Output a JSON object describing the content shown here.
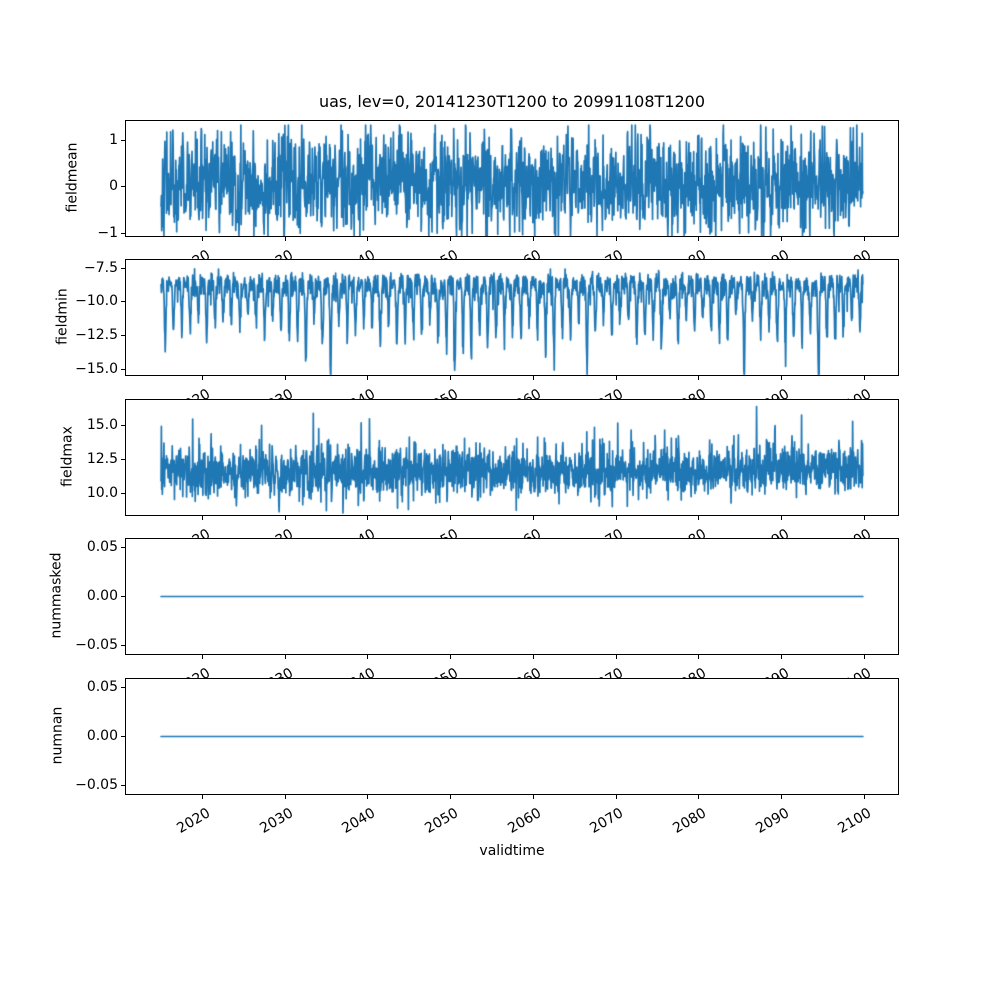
{
  "title": "uas, lev=0, 20141230T1200 to 20991108T1200",
  "line_color": "#1f77b4",
  "background_color": "#ffffff",
  "text_color": "#000000",
  "spine_color": "#000000",
  "x_axis": {
    "label": "validtime",
    "tick_values": [
      2020,
      2030,
      2040,
      2050,
      2060,
      2070,
      2080,
      2090,
      2100
    ],
    "tick_labels": [
      "2020",
      "2030",
      "2040",
      "2050",
      "2060",
      "2070",
      "2080",
      "2090",
      "2100"
    ],
    "xlim": [
      2010.75,
      2104.1
    ],
    "tick_label_rotation_deg": 30
  },
  "chart_data": [
    {
      "type": "line",
      "panel": "fieldmean",
      "ylabel": "fieldmean",
      "ytick_values": [
        1,
        0,
        -1
      ],
      "ytick_labels": [
        "1",
        "0",
        "−1"
      ],
      "ylim": [
        -1.06,
        1.42
      ],
      "x_start": 2014.99,
      "x_end": 2099.85,
      "summary": {
        "pattern": "dense high-frequency noise around zero",
        "mean": 0.08,
        "min": -1.05,
        "max": 1.33
      },
      "gen": {
        "kind": "ar-noise",
        "seed": 42,
        "n": 2200,
        "ar": 0.25,
        "sigma": 0.52,
        "offset": 0.08,
        "clip": [
          -1.05,
          1.33
        ]
      }
    },
    {
      "type": "line",
      "panel": "fieldmin",
      "ylabel": "fieldmin",
      "ytick_values": [
        -7.5,
        -10.0,
        -12.5,
        -15.0
      ],
      "ytick_labels": [
        "−7.5",
        "−10.0",
        "−12.5",
        "−15.0"
      ],
      "ylim": [
        -15.44,
        -6.88
      ],
      "x_start": 2014.99,
      "x_end": 2099.85,
      "summary": {
        "pattern": "noisy base near -8 with annual downward spikes to -10.5..-13, rare spikes near -15",
        "base": -8.1,
        "typical_dip": -12.0,
        "deepest": -15.3,
        "deepest_year": 2094
      },
      "gen": {
        "kind": "annual-dips",
        "seed": 7,
        "n": 2200,
        "base": -8.05,
        "base_noise": 0.55,
        "dip_sigma_years": 0.085,
        "dip_depth_min": 2.2,
        "dip_depth_rand": 2.6,
        "deep_dips": [
          [
            2035,
            6.4
          ],
          [
            2050,
            6.6
          ],
          [
            2066,
            6.1
          ],
          [
            2094,
            7.35
          ]
        ],
        "clip": [
          -15.38,
          -7.2
        ]
      }
    },
    {
      "type": "line",
      "panel": "fieldmax",
      "ylabel": "fieldmax",
      "ytick_values": [
        15.0,
        12.5,
        10.0
      ],
      "ytick_labels": [
        "15.0",
        "12.5",
        "10.0"
      ],
      "ylim": [
        8.41,
        16.88
      ],
      "x_start": 2014.99,
      "x_end": 2099.85,
      "summary": {
        "pattern": "noise around 11.5-12 with upward peaks, slight late-century rise",
        "base": 11.6,
        "min": 8.6,
        "max_peak": 16.4,
        "max_peak_year": 2087
      },
      "gen": {
        "kind": "noisy-peaks",
        "seed": 13,
        "n": 2200,
        "base": 11.55,
        "sigma": 0.92,
        "trend_start": 2072,
        "trend_per_year": 0.013,
        "peak_prob": 0.02,
        "peaks": [
          [
            2033.4,
            15.9
          ],
          [
            2040.2,
            15.5
          ],
          [
            2087.0,
            16.4
          ],
          [
            2098.6,
            15.3
          ]
        ],
        "clip": [
          8.55,
          16.8
        ]
      }
    },
    {
      "type": "line",
      "panel": "nummasked",
      "ylabel": "nummasked",
      "ytick_values": [
        0.05,
        0.0,
        -0.05
      ],
      "ytick_labels": [
        "0.05",
        "0.00",
        "−0.05"
      ],
      "ylim": [
        -0.059,
        0.059
      ],
      "x_start": 2014.99,
      "x_end": 2099.85,
      "summary": {
        "pattern": "constant zero line",
        "value": 0
      },
      "gen": {
        "kind": "constant",
        "value": 0
      }
    },
    {
      "type": "line",
      "panel": "numnan",
      "ylabel": "numnan",
      "ytick_values": [
        0.05,
        0.0,
        -0.05
      ],
      "ytick_labels": [
        "0.05",
        "0.00",
        "−0.05"
      ],
      "ylim": [
        -0.059,
        0.059
      ],
      "x_start": 2014.99,
      "x_end": 2099.85,
      "summary": {
        "pattern": "constant zero line",
        "value": 0
      },
      "gen": {
        "kind": "constant",
        "value": 0
      }
    }
  ]
}
